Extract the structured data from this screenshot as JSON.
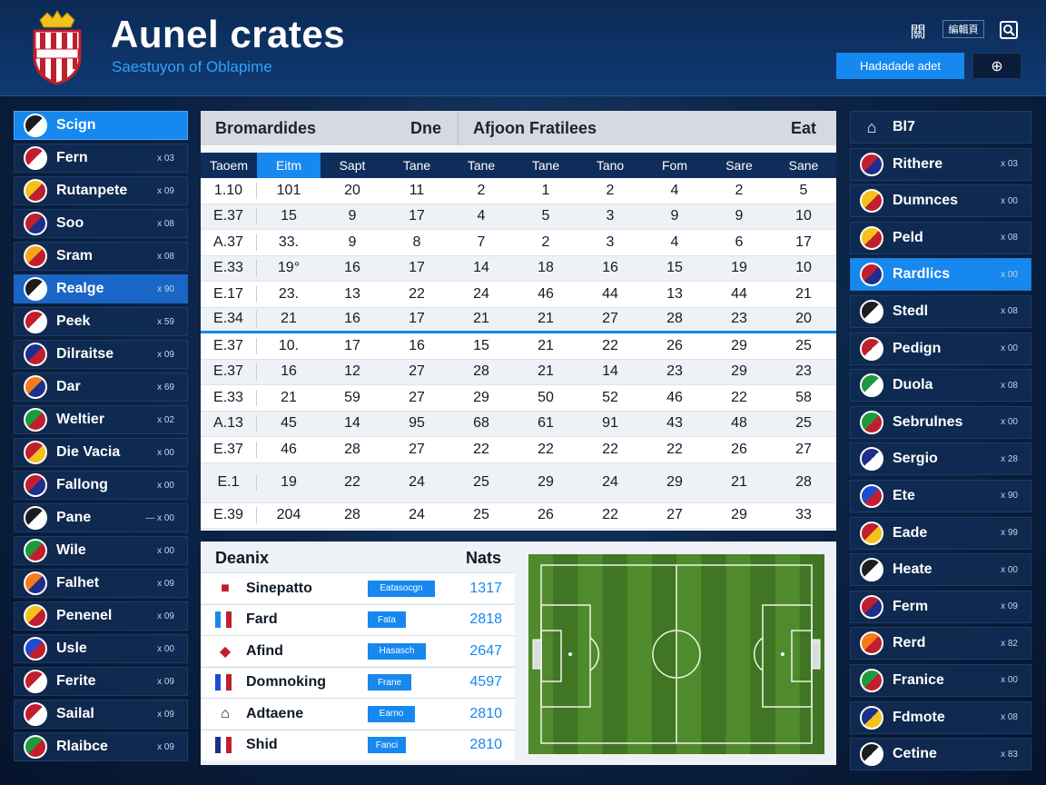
{
  "header": {
    "title": "Aunel crates",
    "subtitle": "Saestuyon of Oblapime",
    "top_icons": [
      "grid-icon",
      "menu-text-icon",
      "search-icon"
    ],
    "top_label_1": "關",
    "top_label_2": "編輯頁",
    "action_button": "Hadadade adet",
    "globe_icon": "⊕"
  },
  "left_sidebar": [
    {
      "label": "Scign",
      "value": "",
      "state": "active",
      "colors": [
        "#1d1d1d",
        "#ffffff"
      ]
    },
    {
      "label": "Fern",
      "value": "x 03",
      "state": "",
      "colors": [
        "#c01f2d",
        "#ffffff"
      ]
    },
    {
      "label": "Rutanpete",
      "value": "x 09",
      "state": "",
      "colors": [
        "#f4c21b",
        "#c01f2d"
      ]
    },
    {
      "label": "Soo",
      "value": "x 08",
      "state": "",
      "colors": [
        "#c01f2d",
        "#1d2f8a"
      ]
    },
    {
      "label": "Sram",
      "value": "x 08",
      "state": "",
      "colors": [
        "#f4a71b",
        "#c01f2d"
      ]
    },
    {
      "label": "Realge",
      "value": "x 90",
      "state": "sel",
      "colors": [
        "#1d1d1d",
        "#ffffff"
      ]
    },
    {
      "label": "Peek",
      "value": "x 59",
      "state": "",
      "colors": [
        "#c01f2d",
        "#ffffff"
      ]
    },
    {
      "label": "Dilraitse",
      "value": "x 09",
      "state": "",
      "colors": [
        "#1d2f8a",
        "#c01f2d"
      ]
    },
    {
      "label": "Dar",
      "value": "x 69",
      "state": "",
      "colors": [
        "#f47c1b",
        "#1d2f8a"
      ]
    },
    {
      "label": "Weltier",
      "value": "x 02",
      "state": "",
      "colors": [
        "#1e9a3e",
        "#c01f2d"
      ]
    },
    {
      "label": "Die Vacia",
      "value": "x 00",
      "state": "",
      "colors": [
        "#c01f2d",
        "#f4c21b"
      ]
    },
    {
      "label": "Fallong",
      "value": "x 00",
      "state": "",
      "colors": [
        "#c01f2d",
        "#1d2f8a"
      ]
    },
    {
      "label": "Pane",
      "value": "— x 00",
      "state": "",
      "colors": [
        "#1d1d1d",
        "#ffffff"
      ]
    },
    {
      "label": "Wile",
      "value": "x 00",
      "state": "",
      "colors": [
        "#1e9a3e",
        "#c01f2d"
      ]
    },
    {
      "label": "Falhet",
      "value": "x 09",
      "state": "",
      "colors": [
        "#f47c1b",
        "#1d2f8a"
      ]
    },
    {
      "label": "Penenel",
      "value": "x 09",
      "state": "",
      "colors": [
        "#f4c21b",
        "#c01f2d"
      ]
    },
    {
      "label": "Usle",
      "value": "x 00",
      "state": "",
      "colors": [
        "#1d4bd1",
        "#c01f2d"
      ]
    },
    {
      "label": "Ferite",
      "value": "x 09",
      "state": "",
      "colors": [
        "#c01f2d",
        "#ffffff"
      ]
    },
    {
      "label": "Sailal",
      "value": "x 09",
      "state": "",
      "colors": [
        "#c01f2d",
        "#ffffff"
      ]
    },
    {
      "label": "Rlaibce",
      "value": "x 09",
      "state": "",
      "colors": [
        "#1e9a3e",
        "#c01f2d"
      ]
    }
  ],
  "right_sidebar": [
    {
      "label": "Bl7",
      "value": "",
      "state": "header",
      "colors": [
        "#ffffff",
        "#ffffff"
      ]
    },
    {
      "label": "Rithere",
      "value": "x 03",
      "state": "",
      "colors": [
        "#c01f2d",
        "#1d2f8a"
      ]
    },
    {
      "label": "Dumnces",
      "value": "x 00",
      "state": "",
      "colors": [
        "#f4c21b",
        "#c01f2d"
      ]
    },
    {
      "label": "Peld",
      "value": "x 08",
      "state": "",
      "colors": [
        "#f4c21b",
        "#c01f2d"
      ]
    },
    {
      "label": "Rardlics",
      "value": "x 00",
      "state": "sel",
      "colors": [
        "#c01f2d",
        "#1d2f8a"
      ]
    },
    {
      "label": "Stedl",
      "value": "x 08",
      "state": "",
      "colors": [
        "#1d1d1d",
        "#ffffff"
      ]
    },
    {
      "label": "Pedign",
      "value": "x 00",
      "state": "",
      "colors": [
        "#c01f2d",
        "#ffffff"
      ]
    },
    {
      "label": "Duola",
      "value": "x 08",
      "state": "",
      "colors": [
        "#1e9a3e",
        "#ffffff"
      ]
    },
    {
      "label": "Sebrulnes",
      "value": "x 00",
      "state": "",
      "colors": [
        "#1e9a3e",
        "#c01f2d"
      ]
    },
    {
      "label": "Sergio",
      "value": "x 28",
      "state": "",
      "colors": [
        "#1d2f8a",
        "#ffffff"
      ]
    },
    {
      "label": "Ete",
      "value": "x 90",
      "state": "",
      "colors": [
        "#1d4bd1",
        "#c01f2d"
      ]
    },
    {
      "label": "Eade",
      "value": "x 99",
      "state": "",
      "colors": [
        "#c01f2d",
        "#f4c21b"
      ]
    },
    {
      "label": "Heate",
      "value": "x 00",
      "state": "",
      "colors": [
        "#1d1d1d",
        "#ffffff"
      ]
    },
    {
      "label": "Ferm",
      "value": "x 09",
      "state": "",
      "colors": [
        "#c01f2d",
        "#1d2f8a"
      ]
    },
    {
      "label": "Rerd",
      "value": "x 82",
      "state": "",
      "colors": [
        "#f47c1b",
        "#c01f2d"
      ]
    },
    {
      "label": "Franice",
      "value": "x 00",
      "state": "",
      "colors": [
        "#1e9a3e",
        "#c01f2d"
      ]
    },
    {
      "label": "Fdmote",
      "value": "x 08",
      "state": "",
      "colors": [
        "#1d2f8a",
        "#f4c21b"
      ]
    },
    {
      "label": "Cetine",
      "value": "x 83",
      "state": "",
      "colors": [
        "#1d1d1d",
        "#ffffff"
      ]
    }
  ],
  "table": {
    "header_title_1": "Bromardides",
    "header_title_2": "Dne",
    "header_title_3": "Afjoon Fratilees",
    "header_title_4": "Eat",
    "columns": [
      "Taoem",
      "Eitm",
      "Sapt",
      "Tane",
      "Tane",
      "Tane",
      "Tano",
      "Fom",
      "Sare",
      "Sane"
    ],
    "highlight_column": 1,
    "rows": [
      [
        "1.10",
        "101",
        "20",
        "11",
        "2",
        "1",
        "2",
        "4",
        "2",
        "5"
      ],
      [
        "E.37",
        "15",
        "9",
        "17",
        "4",
        "5",
        "3",
        "9",
        "9",
        "10"
      ],
      [
        "A.37",
        "33.",
        "9",
        "8",
        "7",
        "2",
        "3",
        "4",
        "6",
        "17"
      ],
      [
        "E.33",
        "19°",
        "16",
        "17",
        "14",
        "18",
        "16",
        "15",
        "19",
        "10"
      ],
      [
        "E.17",
        "23.",
        "13",
        "22",
        "24",
        "46",
        "44",
        "13",
        "44",
        "21"
      ],
      [
        "E.34",
        "21",
        "16",
        "17",
        "21",
        "21",
        "27",
        "28",
        "23",
        "20"
      ],
      [
        "E.37",
        "10.",
        "17",
        "16",
        "15",
        "21",
        "22",
        "26",
        "29",
        "25"
      ],
      [
        "E.37",
        "16",
        "12",
        "27",
        "28",
        "21",
        "14",
        "23",
        "29",
        "23"
      ],
      [
        "E.33",
        "21",
        "59",
        "27",
        "29",
        "50",
        "52",
        "46",
        "22",
        "58"
      ],
      [
        "A.13",
        "45",
        "14",
        "95",
        "68",
        "61",
        "91",
        "43",
        "48",
        "25"
      ],
      [
        "E.37",
        "46",
        "28",
        "27",
        "22",
        "22",
        "22",
        "22",
        "26",
        "27"
      ],
      [
        "E.1",
        "19",
        "22",
        "24",
        "25",
        "29",
        "24",
        "29",
        "21",
        "28"
      ],
      [
        "E.39",
        "204",
        "28",
        "24",
        "25",
        "26",
        "22",
        "27",
        "29",
        "33"
      ]
    ]
  },
  "bottom": {
    "title": "Deanix",
    "stats_title": "Nats",
    "list": [
      {
        "name": "Sinepatto",
        "tag": "Eatasocgn",
        "num": "1317",
        "icon": "crest-icon",
        "color": "#c01f2d"
      },
      {
        "name": "Fard",
        "tag": "Fata",
        "num": "2818",
        "icon": "flag-icon",
        "color": "#1688ef"
      },
      {
        "name": "Afind",
        "tag": "Hasasch",
        "num": "2647",
        "icon": "shield-icon",
        "color": "#c01f2d"
      },
      {
        "name": "Domnoking",
        "tag": "Frane",
        "num": "4597",
        "icon": "flag-icon",
        "color": "#1d4bd1"
      },
      {
        "name": "Adtaene",
        "tag": "Earno",
        "num": "2810",
        "icon": "lock-icon",
        "color": "#111111"
      },
      {
        "name": "Shid",
        "tag": "Fanci",
        "num": "2810",
        "icon": "flag-icon",
        "color": "#1d2f8a"
      }
    ]
  },
  "colors": {
    "accent": "#1688ef",
    "panel": "#102c54",
    "pitch_light": "#4f8a2c",
    "pitch_dark": "#3f7523"
  }
}
